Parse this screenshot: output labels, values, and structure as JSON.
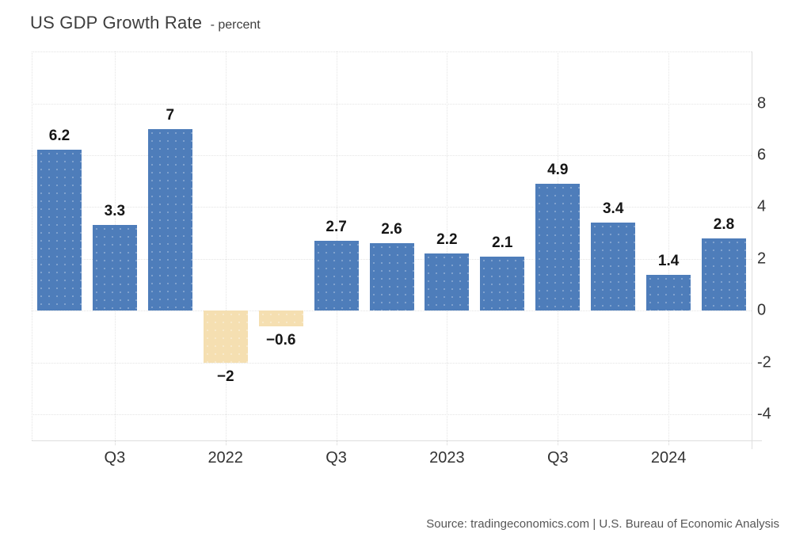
{
  "header": {
    "title": "US GDP Growth Rate",
    "subtitle": "- percent"
  },
  "footer": {
    "source": "Source: tradingeconomics.com | U.S. Bureau of Economic Analysis"
  },
  "colors": {
    "bar_positive": "#4e7dba",
    "bar_negative": "#f5dfb1",
    "gridline": "#e4e4e4",
    "axis_text": "#333333",
    "title_text": "#3d3d3d",
    "source_text": "#565656"
  },
  "chart_data": {
    "type": "bar",
    "title": "US GDP Growth Rate",
    "subtitle": "- percent",
    "ylabel": "percent",
    "values": [
      6.2,
      3.3,
      7,
      -2,
      -0.6,
      2.7,
      2.6,
      2.2,
      2.1,
      4.9,
      3.4,
      1.4,
      2.8
    ],
    "bar_labels": [
      "6.2",
      "3.3",
      "7",
      "−2",
      "−0.6",
      "2.7",
      "2.6",
      "2.2",
      "2.1",
      "4.9",
      "3.4",
      "1.4",
      "2.8"
    ],
    "x_ticks": [
      {
        "bar_index": 1,
        "label": "Q3"
      },
      {
        "bar_index": 3,
        "label": "2022"
      },
      {
        "bar_index": 5,
        "label": "Q3"
      },
      {
        "bar_index": 7,
        "label": "2023"
      },
      {
        "bar_index": 9,
        "label": "Q3"
      },
      {
        "bar_index": 11,
        "label": "2024"
      }
    ],
    "y_ticks": [
      8,
      6,
      4,
      2,
      0,
      -2,
      -4
    ],
    "ylim": [
      -5,
      10
    ],
    "grid": true,
    "value_axis_side": "right",
    "legend": null
  }
}
